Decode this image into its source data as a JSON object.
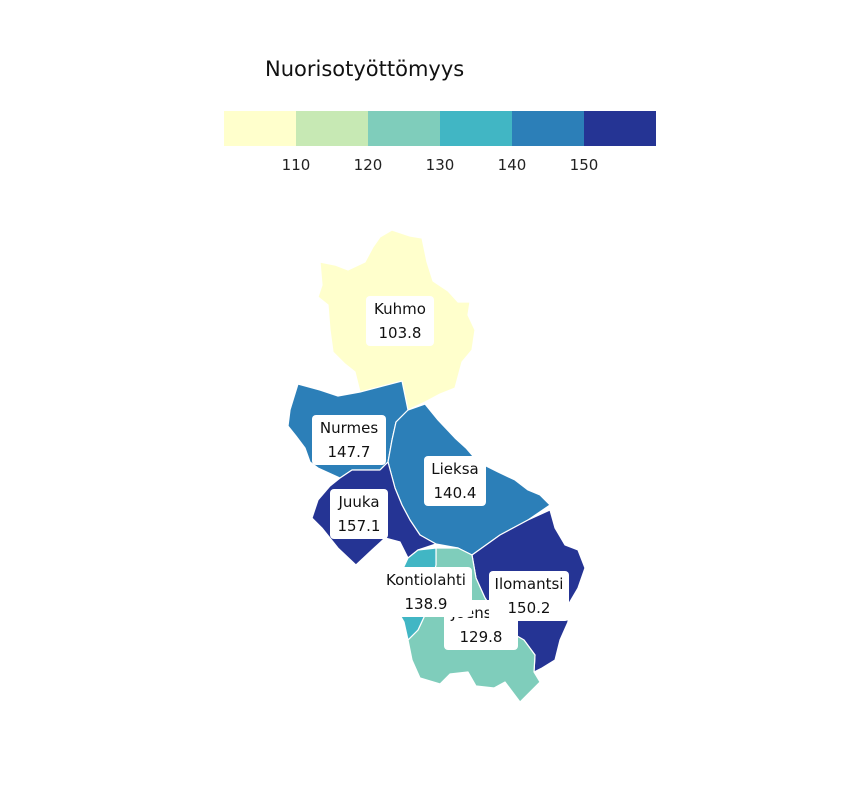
{
  "legend": {
    "title": "Nuorisotyöttömyys",
    "breaks": [
      "110",
      "120",
      "130",
      "140",
      "150"
    ],
    "colors": [
      "#ffffcc",
      "#c7e9b4",
      "#7fcdbb",
      "#41b6c4",
      "#2c7fb8",
      "#253494"
    ]
  },
  "municipalities": [
    {
      "name": "Kuhmo",
      "value": "103.8",
      "color": "#ffffcc"
    },
    {
      "name": "Nurmes",
      "value": "147.7",
      "color": "#2c7fb8"
    },
    {
      "name": "Lieksa",
      "value": "140.4",
      "color": "#2c7fb8"
    },
    {
      "name": "Juuka",
      "value": "157.1",
      "color": "#253494"
    },
    {
      "name": "Kontiolahti",
      "value": "138.9",
      "color": "#41b6c4"
    },
    {
      "name": "Ilomantsi",
      "value": "150.2",
      "color": "#253494"
    },
    {
      "name": "Joensuu",
      "value": "129.8",
      "color": "#7fcdbb"
    }
  ]
}
